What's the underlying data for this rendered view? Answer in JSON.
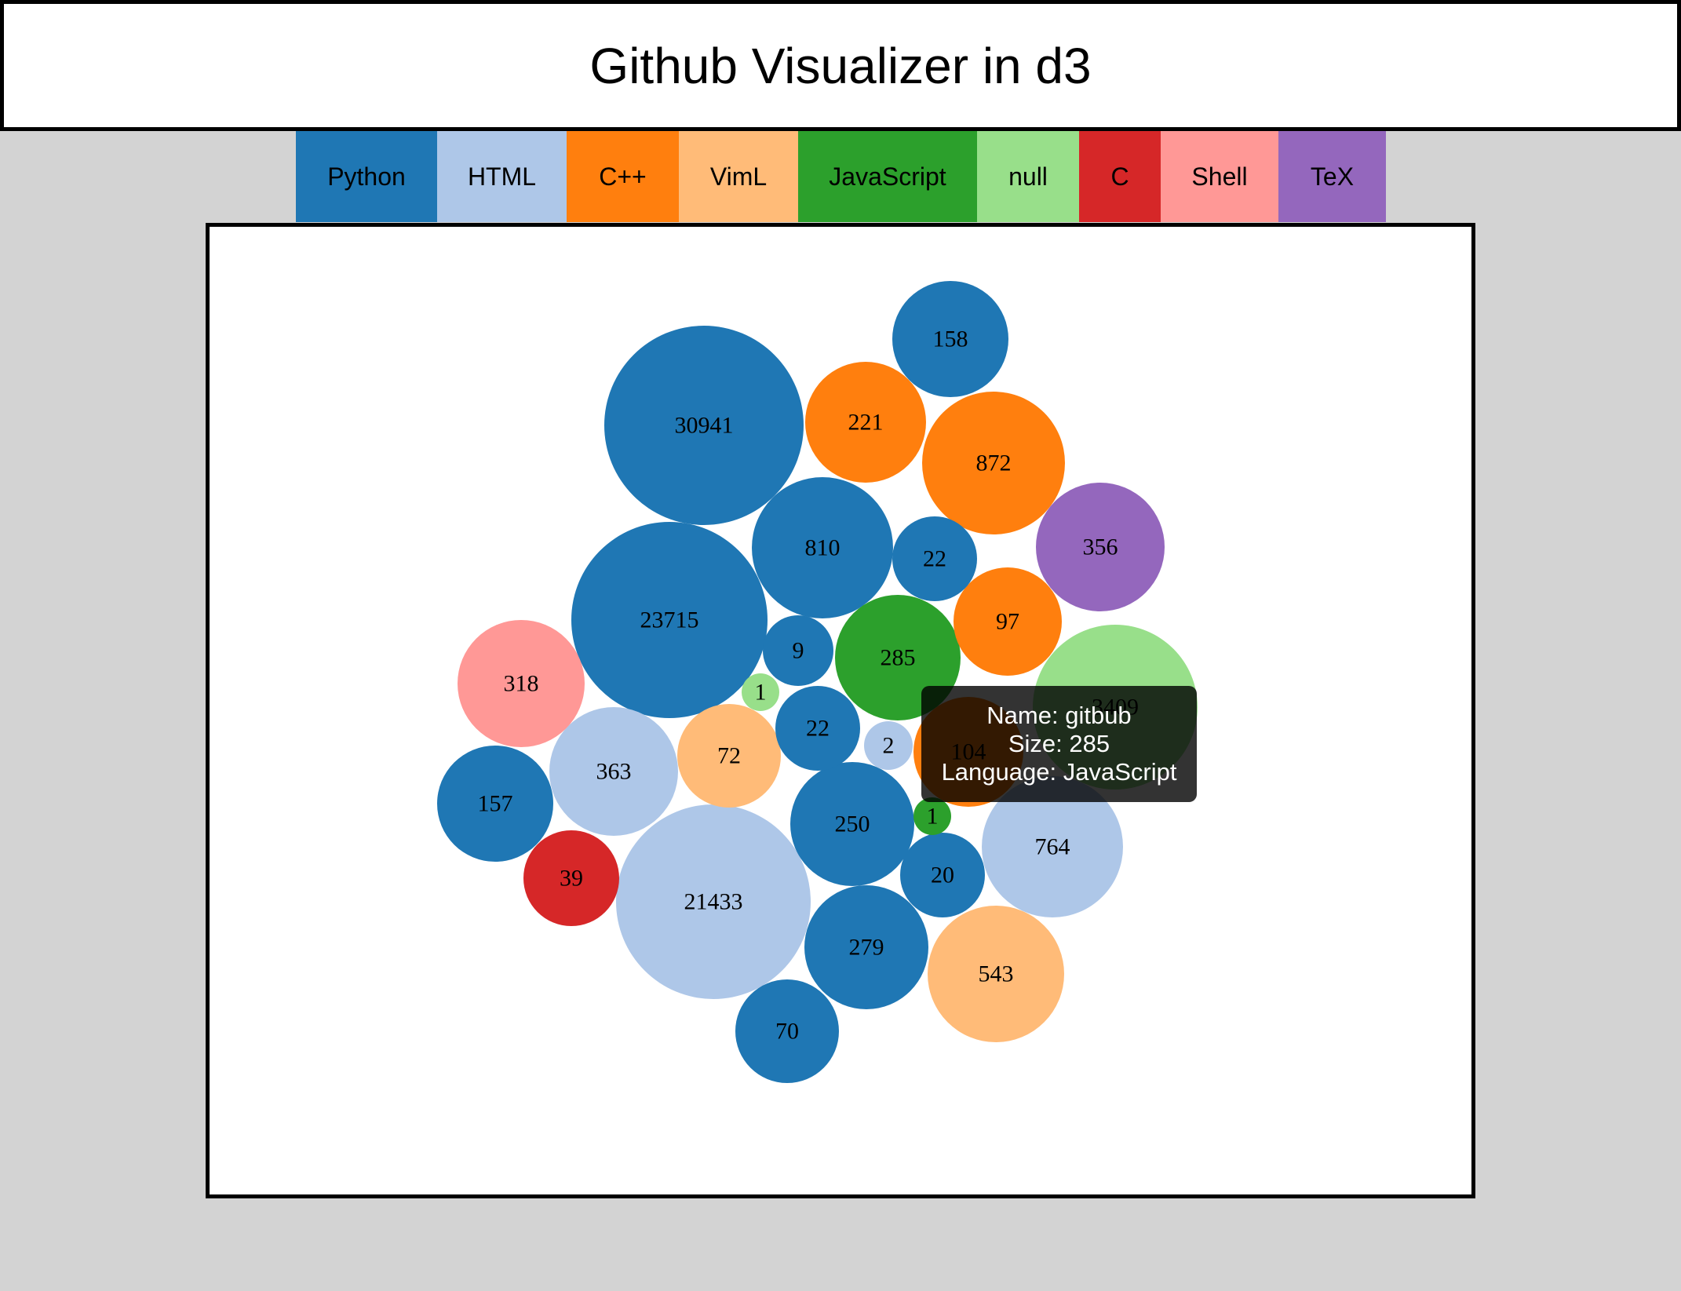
{
  "header": {
    "title": "Github Visualizer in d3"
  },
  "legend": [
    {
      "label": "Python",
      "color": "#1f77b4"
    },
    {
      "label": "HTML",
      "color": "#aec7e8"
    },
    {
      "label": "C++",
      "color": "#ff7f0e"
    },
    {
      "label": "VimL",
      "color": "#ffbb78"
    },
    {
      "label": "JavaScript",
      "color": "#2ca02c"
    },
    {
      "label": "null",
      "color": "#98df8a"
    },
    {
      "label": "C",
      "color": "#d62728"
    },
    {
      "label": "Shell",
      "color": "#ff9896"
    },
    {
      "label": "TeX",
      "color": "#9467bd"
    }
  ],
  "tooltip": {
    "name_line": "Name: gitbub",
    "size_line": "Size: 285",
    "language_line": "Language: JavaScript"
  },
  "chart_data": {
    "type": "bubble",
    "title": "",
    "series": [
      {
        "value": 30941,
        "language": "Python"
      },
      {
        "value": 23715,
        "language": "Python"
      },
      {
        "value": 21433,
        "language": "HTML"
      },
      {
        "value": 3409,
        "language": "null"
      },
      {
        "value": 872,
        "language": "C++"
      },
      {
        "value": 810,
        "language": "Python"
      },
      {
        "value": 764,
        "language": "HTML"
      },
      {
        "value": 543,
        "language": "VimL"
      },
      {
        "value": 363,
        "language": "HTML"
      },
      {
        "value": 356,
        "language": "TeX"
      },
      {
        "value": 318,
        "language": "Shell"
      },
      {
        "value": 285,
        "language": "JavaScript"
      },
      {
        "value": 279,
        "language": "Python"
      },
      {
        "value": 250,
        "language": "Python"
      },
      {
        "value": 221,
        "language": "C++"
      },
      {
        "value": 158,
        "language": "Python"
      },
      {
        "value": 157,
        "language": "Python"
      },
      {
        "value": 104,
        "language": "C++"
      },
      {
        "value": 97,
        "language": "C++"
      },
      {
        "value": 72,
        "language": "VimL"
      },
      {
        "value": 70,
        "language": "Python"
      },
      {
        "value": 39,
        "language": "C"
      },
      {
        "value": 22,
        "language": "Python"
      },
      {
        "value": 22,
        "language": "Python"
      },
      {
        "value": 20,
        "language": "Python"
      },
      {
        "value": 9,
        "language": "Python"
      },
      {
        "value": 2,
        "language": "HTML"
      },
      {
        "value": 1,
        "language": "null"
      },
      {
        "value": 1,
        "language": "JavaScript"
      }
    ]
  }
}
